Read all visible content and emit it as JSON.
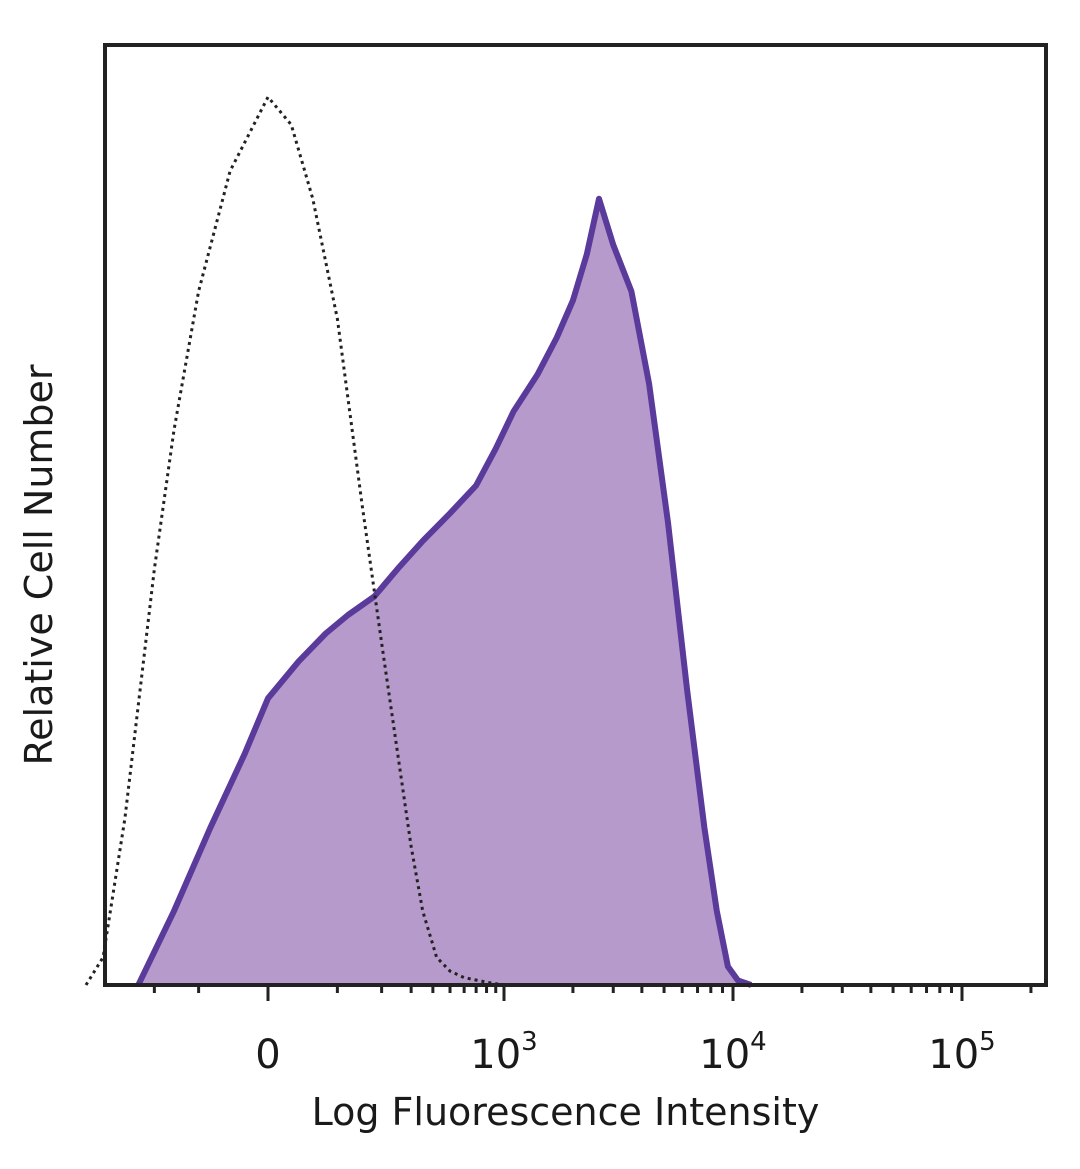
{
  "chart_data": {
    "type": "area",
    "xlabel": "Log Fluorescence Intensity",
    "ylabel": "Relative Cell Number",
    "x_scale": "biexponential",
    "x_ticks": [
      {
        "value": 0,
        "base": "0",
        "exp": ""
      },
      {
        "value": 1000,
        "base": "10",
        "exp": "3"
      },
      {
        "value": 10000,
        "base": "10",
        "exp": "4"
      },
      {
        "value": 100000,
        "base": "10",
        "exp": "5"
      }
    ],
    "ylim": [
      0,
      100
    ],
    "grid": false,
    "legend": "none",
    "colors": {
      "stained_fill": "#b59acb",
      "stained_line": "#5a3a9a",
      "control_line": "#222222",
      "axis": "#222222"
    },
    "series": [
      {
        "style": "filled",
        "x": [
          -250,
          -150,
          -80,
          -30,
          0,
          40,
          80,
          120,
          180,
          250,
          350,
          500,
          700,
          900,
          1100,
          1400,
          1700,
          2000,
          2300,
          2600,
          3000,
          3600,
          4300,
          5200,
          6300,
          7500,
          8500,
          9500,
          10500,
          12000
        ],
        "y": [
          0,
          8,
          17,
          25,
          31,
          35,
          38,
          40,
          42,
          45,
          48,
          51,
          54,
          58,
          62,
          66,
          70,
          74,
          79,
          85,
          80,
          75,
          65,
          50,
          32,
          17,
          8,
          2,
          0.5,
          0
        ]
      },
      {
        "style": "dotted",
        "x": [
          -500,
          -400,
          -300,
          -200,
          -150,
          -100,
          -50,
          0,
          30,
          60,
          100,
          150,
          200,
          250,
          300,
          350,
          420,
          500,
          600,
          800,
          1000
        ],
        "y": [
          0,
          3,
          18,
          45,
          60,
          75,
          88,
          96,
          93,
          85,
          72,
          52,
          37,
          25,
          15,
          8,
          3,
          1.5,
          0.8,
          0.3,
          0
        ]
      }
    ]
  }
}
